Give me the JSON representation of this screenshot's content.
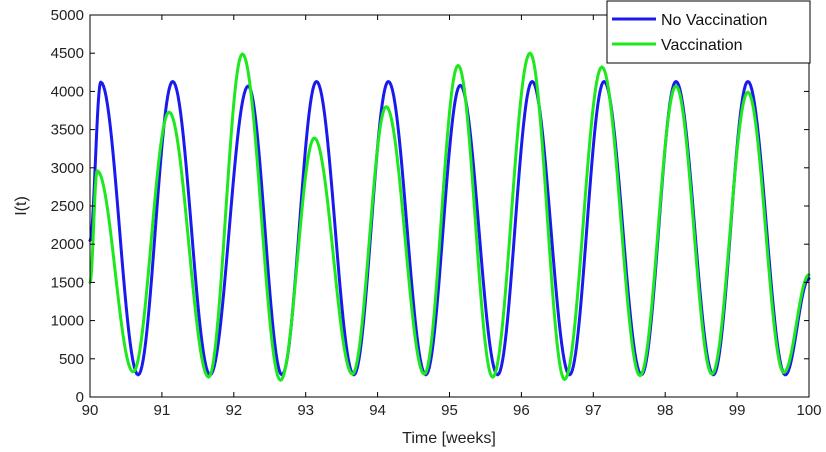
{
  "chart_data": {
    "type": "line",
    "xlabel": "Time [weeks]",
    "ylabel": "I(t)",
    "xlim": [
      90,
      100
    ],
    "ylim": [
      0,
      5000
    ],
    "xticks": [
      "90",
      "91",
      "92",
      "93",
      "94",
      "95",
      "96",
      "97",
      "98",
      "99",
      "100"
    ],
    "yticks": [
      "0",
      "500",
      "1000",
      "1500",
      "2000",
      "2500",
      "3000",
      "3500",
      "4000",
      "4500",
      "5000"
    ],
    "grid": false,
    "legend_position": "top-right",
    "series": [
      {
        "name": "No Vaccination",
        "color": "#1a1aee",
        "peaks": [
          {
            "x": 90.15,
            "y": 4120
          },
          {
            "x": 91.15,
            "y": 4130
          },
          {
            "x": 92.2,
            "y": 4070
          },
          {
            "x": 93.15,
            "y": 4130
          },
          {
            "x": 94.15,
            "y": 4130
          },
          {
            "x": 95.15,
            "y": 4080
          },
          {
            "x": 96.15,
            "y": 4130
          },
          {
            "x": 97.15,
            "y": 4130
          },
          {
            "x": 98.15,
            "y": 4130
          },
          {
            "x": 99.15,
            "y": 4130
          }
        ],
        "troughs": [
          {
            "x": 90.67,
            "y": 290
          },
          {
            "x": 91.67,
            "y": 290
          },
          {
            "x": 92.67,
            "y": 290
          },
          {
            "x": 93.67,
            "y": 290
          },
          {
            "x": 94.67,
            "y": 290
          },
          {
            "x": 95.67,
            "y": 290
          },
          {
            "x": 96.67,
            "y": 290
          },
          {
            "x": 97.67,
            "y": 290
          },
          {
            "x": 98.67,
            "y": 290
          },
          {
            "x": 99.67,
            "y": 290
          }
        ],
        "start": {
          "x": 90.0,
          "y": 2050
        },
        "end": {
          "x": 100.0,
          "y": 1550
        }
      },
      {
        "name": "Vaccination",
        "color": "#1ee81e",
        "peaks": [
          {
            "x": 90.1,
            "y": 2960
          },
          {
            "x": 91.1,
            "y": 3730
          },
          {
            "x": 92.12,
            "y": 4490
          },
          {
            "x": 93.12,
            "y": 3390
          },
          {
            "x": 94.12,
            "y": 3800
          },
          {
            "x": 95.12,
            "y": 4340
          },
          {
            "x": 96.12,
            "y": 4500
          },
          {
            "x": 97.12,
            "y": 4320
          },
          {
            "x": 98.15,
            "y": 4070
          },
          {
            "x": 99.15,
            "y": 3990
          }
        ],
        "troughs": [
          {
            "x": 90.6,
            "y": 330
          },
          {
            "x": 91.65,
            "y": 260
          },
          {
            "x": 92.65,
            "y": 220
          },
          {
            "x": 93.65,
            "y": 300
          },
          {
            "x": 94.65,
            "y": 300
          },
          {
            "x": 95.6,
            "y": 260
          },
          {
            "x": 96.6,
            "y": 230
          },
          {
            "x": 97.65,
            "y": 280
          },
          {
            "x": 98.65,
            "y": 300
          },
          {
            "x": 99.65,
            "y": 320
          }
        ],
        "start": {
          "x": 90.0,
          "y": 1500
        },
        "end": {
          "x": 100.0,
          "y": 1600
        }
      }
    ]
  }
}
